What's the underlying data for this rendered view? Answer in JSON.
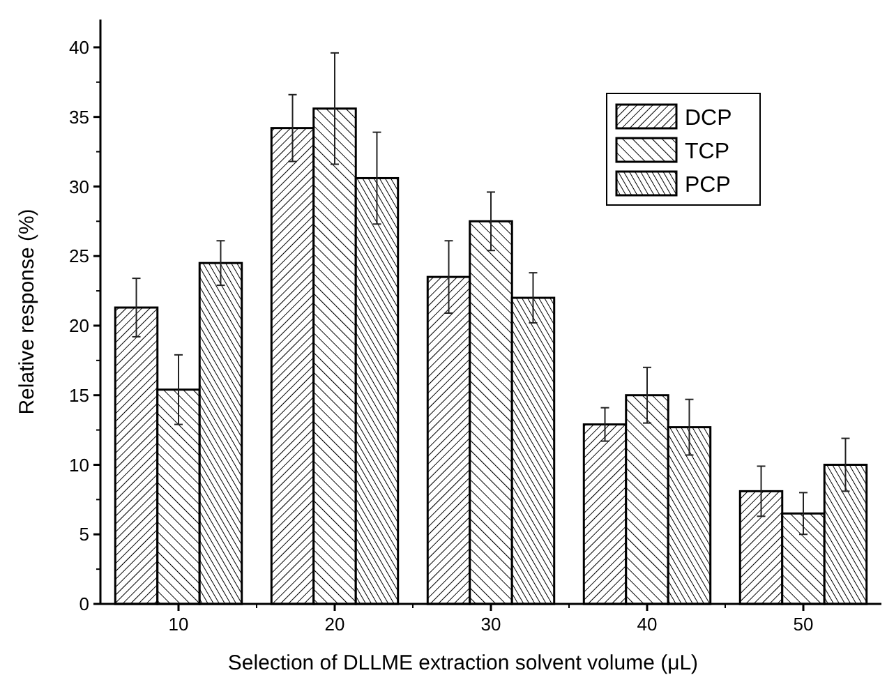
{
  "chart_data": {
    "type": "bar",
    "xlabel": "Selection of DLLME extraction solvent volume (μL)",
    "ylabel": "Relative response (%)",
    "categories": [
      "10",
      "20",
      "30",
      "40",
      "50"
    ],
    "series": [
      {
        "name": "DCP",
        "color": "#000000",
        "values": [
          21.3,
          34.2,
          23.5,
          12.9,
          8.1
        ],
        "errors": [
          2.1,
          2.4,
          2.6,
          1.2,
          1.8
        ]
      },
      {
        "name": "TCP",
        "color": "#000000",
        "values": [
          15.4,
          35.6,
          27.5,
          15.0,
          6.5
        ],
        "errors": [
          2.5,
          4.0,
          2.1,
          2.0,
          1.5
        ]
      },
      {
        "name": "PCP",
        "color": "#000000",
        "values": [
          24.5,
          30.6,
          22.0,
          12.7,
          10.0
        ],
        "errors": [
          1.6,
          3.3,
          1.8,
          2.0,
          1.9
        ]
      }
    ],
    "ylim": [
      0,
      42
    ],
    "yticks": [
      0,
      5,
      10,
      15,
      20,
      25,
      30,
      35,
      40
    ],
    "grid": false,
    "legend": "top right"
  }
}
